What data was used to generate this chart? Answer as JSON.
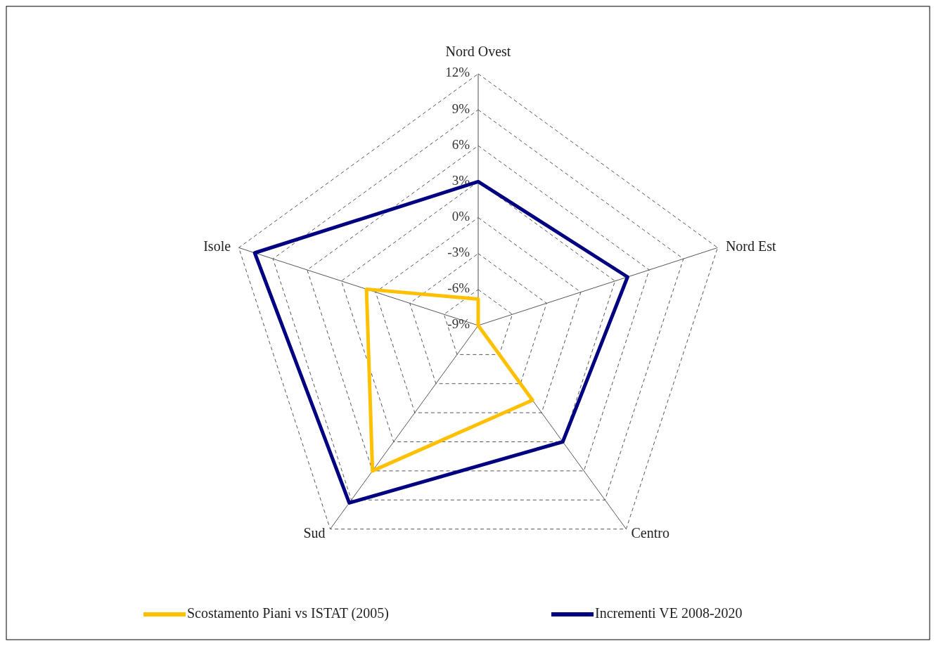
{
  "chart_data": {
    "type": "radar",
    "categories": [
      "Nord Ovest",
      "Nord Est",
      "Centro",
      "Sud",
      "Isole"
    ],
    "series": [
      {
        "name": "Scostamento Piani vs ISTAT (2005)",
        "color": "#ffc000",
        "values": [
          -6.8,
          -9,
          -1.3,
          6,
          0.8
        ]
      },
      {
        "name": "Incrementi VE 2008-2020",
        "color": "#000080",
        "values": [
          3,
          4.1,
          3,
          9.3,
          10.6
        ]
      }
    ],
    "ylim": [
      -9,
      12
    ],
    "yticks": [
      {
        "value": -9,
        "label": "-9%"
      },
      {
        "value": -6,
        "label": "-6%"
      },
      {
        "value": -3,
        "label": "-3%"
      },
      {
        "value": 0,
        "label": "0%"
      },
      {
        "value": 3,
        "label": "3%"
      },
      {
        "value": 6,
        "label": "6%"
      },
      {
        "value": 9,
        "label": "9%"
      },
      {
        "value": 12,
        "label": "12%"
      }
    ],
    "grid": true,
    "legend": "bottom",
    "marker": "none",
    "line_style": "solid"
  }
}
